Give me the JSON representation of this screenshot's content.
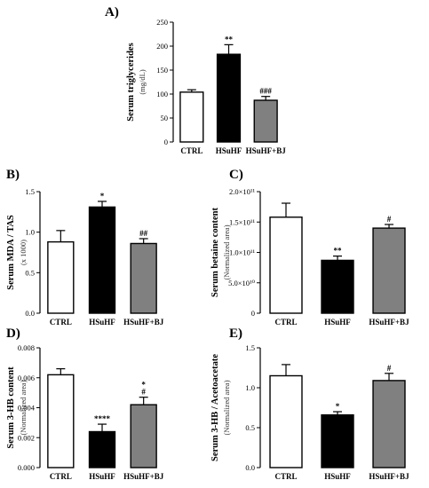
{
  "chart_data": [
    {
      "panel": "A)",
      "type": "bar",
      "categories": [
        "CTRL",
        "HSuHF",
        "HSuHF+BJ"
      ],
      "values": [
        104,
        183,
        87
      ],
      "errors": [
        5,
        20,
        8
      ],
      "annotations": [
        "",
        "**",
        "###"
      ],
      "ylabel": "Serum triglycerides",
      "ylabel_sub": "(mg/dL)",
      "ylim": [
        0,
        250
      ],
      "yticks": [
        0,
        50,
        100,
        150,
        200,
        250
      ],
      "ytick_labels": [
        "0",
        "50",
        "100",
        "150",
        "200",
        "250"
      ],
      "colors": [
        "#ffffff",
        "#000000",
        "#808080"
      ]
    },
    {
      "panel": "B)",
      "type": "bar",
      "categories": [
        "CTRL",
        "HSuHF",
        "HSuHF+BJ"
      ],
      "values": [
        0.88,
        1.31,
        0.86
      ],
      "errors": [
        0.14,
        0.07,
        0.06
      ],
      "annotations": [
        "",
        "*",
        "##"
      ],
      "ylabel": "Serum MDA / TAS",
      "ylabel_sub": "(x 1000)",
      "ylim": [
        0,
        1.5
      ],
      "yticks": [
        0,
        0.5,
        1.0,
        1.5
      ],
      "ytick_labels": [
        "0.0",
        "0.5",
        "1.0",
        "1.5"
      ],
      "colors": [
        "#ffffff",
        "#000000",
        "#808080"
      ]
    },
    {
      "panel": "C)",
      "type": "bar",
      "categories": [
        "CTRL",
        "HSuHF",
        "HSuHF+BJ"
      ],
      "values": [
        158000000000.0,
        87000000000.0,
        140000000000.0
      ],
      "errors": [
        23000000000.0,
        7000000000.0,
        6000000000.0
      ],
      "annotations": [
        "",
        "**",
        "#"
      ],
      "ylabel": "Serum betaine content",
      "ylabel_sub": "(Normalized area)",
      "ylim": [
        0,
        200000000000.0
      ],
      "yticks": [
        0,
        50000000000.0,
        100000000000.0,
        150000000000.0,
        200000000000.0
      ],
      "ytick_labels": [
        "0",
        "5.0×10¹⁰",
        "1.0×10¹¹",
        "1.5×10¹¹",
        "2.0×10¹¹"
      ],
      "colors": [
        "#ffffff",
        "#000000",
        "#808080"
      ]
    },
    {
      "panel": "D)",
      "type": "bar",
      "categories": [
        "CTRL",
        "HSuHF",
        "HSuHF+BJ"
      ],
      "values": [
        0.0062,
        0.0024,
        0.0042
      ],
      "errors": [
        0.0004,
        0.0005,
        0.0005
      ],
      "annotations": [
        "",
        "****",
        "*\n#"
      ],
      "ylabel": "Serum 3-HB content",
      "ylabel_sub": "(Normalized area)",
      "ylim": [
        0,
        0.008
      ],
      "yticks": [
        0,
        0.002,
        0.004,
        0.006,
        0.008
      ],
      "ytick_labels": [
        "0.000",
        "0.002",
        "0.004",
        "0.006",
        "0.008"
      ],
      "colors": [
        "#ffffff",
        "#000000",
        "#808080"
      ]
    },
    {
      "panel": "E)",
      "type": "bar",
      "categories": [
        "CTRL",
        "HSuHF",
        "HSuHF+BJ"
      ],
      "values": [
        1.15,
        0.66,
        1.09
      ],
      "errors": [
        0.14,
        0.04,
        0.09
      ],
      "annotations": [
        "",
        "*",
        "#"
      ],
      "ylabel": "Serum 3-HB / Acetoacetate",
      "ylabel_sub": "(Normalized area)",
      "ylim": [
        0,
        1.5
      ],
      "yticks": [
        0,
        0.5,
        1.0,
        1.5
      ],
      "ytick_labels": [
        "0.0",
        "0.5",
        "1.0",
        "1.5"
      ],
      "colors": [
        "#ffffff",
        "#000000",
        "#808080"
      ]
    }
  ]
}
